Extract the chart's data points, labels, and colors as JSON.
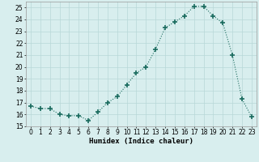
{
  "x": [
    0,
    1,
    2,
    3,
    4,
    5,
    6,
    7,
    8,
    9,
    10,
    11,
    12,
    13,
    14,
    15,
    16,
    17,
    18,
    19,
    20,
    21,
    22,
    23
  ],
  "y": [
    16.7,
    16.5,
    16.5,
    16.0,
    15.9,
    15.9,
    15.5,
    16.2,
    17.0,
    17.5,
    18.5,
    19.5,
    20.0,
    21.5,
    23.3,
    23.8,
    24.3,
    25.1,
    25.1,
    24.3,
    23.7,
    21.0,
    17.3,
    15.8
  ],
  "line_color": "#1a6b5e",
  "marker": "+",
  "marker_size": 4,
  "bg_color": "#d8eeee",
  "grid_color": "#b8d8d8",
  "xlabel": "Humidex (Indice chaleur)",
  "xlim": [
    -0.5,
    23.5
  ],
  "ylim": [
    15,
    25.5
  ],
  "yticks": [
    15,
    16,
    17,
    18,
    19,
    20,
    21,
    22,
    23,
    24,
    25
  ],
  "xticks": [
    0,
    1,
    2,
    3,
    4,
    5,
    6,
    7,
    8,
    9,
    10,
    11,
    12,
    13,
    14,
    15,
    16,
    17,
    18,
    19,
    20,
    21,
    22,
    23
  ],
  "xlabel_fontsize": 6.5,
  "tick_fontsize": 5.5
}
